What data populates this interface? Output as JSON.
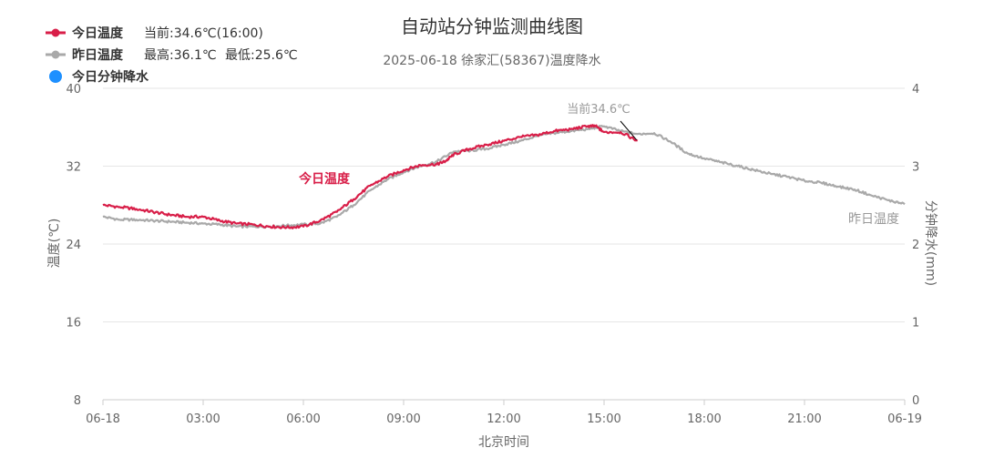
{
  "chart_data": {
    "type": "line",
    "title": "自动站分钟监测曲线图",
    "subtitle": "2025-06-18 徐家汇(58367)温度降水",
    "xlabel": "北京时间",
    "ylabel": "温度(℃)",
    "y2label": "分钟降水(mm)",
    "ylim": [
      8,
      40
    ],
    "y2lim": [
      0,
      4
    ],
    "yticks": [
      "40",
      "32",
      "24",
      "16",
      "8"
    ],
    "yticks_values": [
      40,
      32,
      24,
      16,
      8
    ],
    "y2ticks": [
      "4",
      "3",
      "2",
      "1",
      "0"
    ],
    "y2ticks_values": [
      4,
      3,
      2,
      1,
      0
    ],
    "xlim": [
      0,
      24
    ],
    "xticks": [
      "06-18",
      "03:00",
      "06:00",
      "09:00",
      "12:00",
      "15:00",
      "18:00",
      "21:00",
      "06-19"
    ],
    "xticks_hours": [
      0,
      3,
      6,
      9,
      12,
      15,
      18,
      21,
      24
    ],
    "grid": true,
    "legend_position": "top-left",
    "legend": [
      {
        "label": "今日温度",
        "extra1": "当前:34.6℃(16:00)",
        "extra2": "",
        "color": "#d81e48"
      },
      {
        "label": "昨日温度",
        "extra1": "最高:36.1℃",
        "extra2": "最低:25.6℃",
        "color": "#a9a9a9"
      },
      {
        "label": "今日分钟降水",
        "extra1": "",
        "extra2": "",
        "color": "#1e90ff"
      }
    ],
    "annotations": {
      "today_series_label": "今日温度",
      "yesterday_series_label": "昨日温度",
      "current_label": "当前34.6℃"
    },
    "series": [
      {
        "name": "今日温度",
        "color": "#d81e48",
        "x": [
          0,
          0.5,
          1,
          1.5,
          2,
          2.5,
          3,
          3.5,
          4,
          4.5,
          5,
          5.5,
          6,
          6.5,
          7,
          7.5,
          8,
          8.5,
          9,
          9.5,
          10,
          10.25,
          10.5,
          11,
          11.5,
          12,
          12.5,
          13,
          13.5,
          14,
          14.5,
          14.75,
          15,
          15.5,
          16
        ],
        "y": [
          28.0,
          27.8,
          27.6,
          27.3,
          27.0,
          26.8,
          26.8,
          26.4,
          26.1,
          26.0,
          25.8,
          25.7,
          25.8,
          26.4,
          27.3,
          28.6,
          30.0,
          30.9,
          31.6,
          32.1,
          32.2,
          32.5,
          33.2,
          33.8,
          34.2,
          34.6,
          35.0,
          35.2,
          35.6,
          35.8,
          36.1,
          36.1,
          35.5,
          35.5,
          34.6
        ]
      },
      {
        "name": "昨日温度",
        "color": "#a9a9a9",
        "x": [
          0,
          0.5,
          1,
          1.5,
          2,
          2.5,
          3,
          3.5,
          4,
          4.5,
          5,
          5.5,
          6,
          6.5,
          7,
          7.5,
          8,
          8.5,
          9,
          9.5,
          10,
          10.5,
          11,
          11.5,
          12,
          12.5,
          13,
          13.5,
          14,
          14.5,
          15,
          15.5,
          16,
          16.5,
          17,
          17.5,
          18,
          18.5,
          19,
          19.5,
          20,
          20.5,
          21,
          21.5,
          22,
          22.5,
          23,
          23.5,
          24
        ],
        "y": [
          26.8,
          26.5,
          26.5,
          26.4,
          26.3,
          26.2,
          26.1,
          26.0,
          25.8,
          25.8,
          25.8,
          25.9,
          26.0,
          26.1,
          26.8,
          28.0,
          29.5,
          30.6,
          31.4,
          32.0,
          32.5,
          33.5,
          33.6,
          33.8,
          34.2,
          34.6,
          35.1,
          35.4,
          35.6,
          35.8,
          36.1,
          35.6,
          35.3,
          35.4,
          34.5,
          33.3,
          32.8,
          32.4,
          32.0,
          31.6,
          31.2,
          30.9,
          30.5,
          30.3,
          29.9,
          29.6,
          29.0,
          28.5,
          28.1
        ]
      },
      {
        "name": "今日分钟降水",
        "color": "#1e90ff",
        "x": [],
        "y": []
      }
    ]
  }
}
